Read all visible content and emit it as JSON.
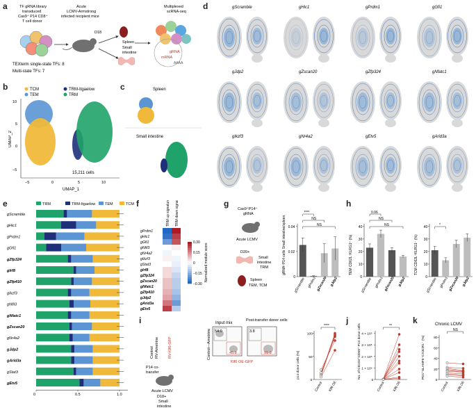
{
  "panel_letters": [
    "a",
    "b",
    "c",
    "d",
    "e",
    "f",
    "g",
    "h",
    "i",
    "j",
    "k"
  ],
  "panel_a": {
    "donor_text": [
      "TF gRNA library",
      "transduced",
      "Cas9⁺ P14 CD8⁺",
      "T cell donor"
    ],
    "infection_text": [
      "Acute",
      "LCMV-Armstrong",
      "infected recipient mice"
    ],
    "seq_text": [
      "Multiplexed",
      "scRNA-seq"
    ],
    "d18": "D18",
    "spleen": "Spleen",
    "small_intestine": [
      "Small",
      "intestine"
    ],
    "grna": "gRNA",
    "mrna": "mRNA",
    "polya": "AAAA",
    "tex_single": "TEXterm single-state TFs: 8",
    "tex_multi": "Multi-state TFs: 7"
  },
  "panel_b": {
    "legend": [
      "TCM",
      "TEM",
      "TRM-Itgaelow",
      "TRM"
    ],
    "cells": "15,211 cells",
    "xlabel": "UMAP_1",
    "ylabel": "UMAP_2",
    "xticks": [
      "−5",
      "0",
      "5",
      "10"
    ],
    "yticks": [
      "−5",
      "0",
      "5",
      "10"
    ]
  },
  "panel_c": {
    "spleen": "Spleen",
    "intestine": "Small intestine"
  },
  "panel_d": {
    "titles": [
      "gScramble",
      "gHic1",
      "gPrdm1",
      "gGfi1",
      "gJdp2",
      "gZscan20",
      "gZfp324",
      "gNfatc1",
      "gIkzf3",
      "gNr4a2",
      "gEtv5",
      "gArid3a"
    ]
  },
  "panel_e": {
    "legend": [
      "TRM",
      "TRM-Itgaelow",
      "TEM",
      "TCM"
    ],
    "xticks": [
      "0",
      "0.5",
      "1.0"
    ],
    "rows": [
      "gScramble",
      "gHic1",
      "gPrdm1",
      "gGfi1",
      "gZfp324",
      "gIrf8",
      "gZfp410",
      "gIkzf3",
      "gNfil3",
      "gNfatc1",
      "gZscan20",
      "gNr4a2",
      "gJdp2",
      "gArid3a",
      "gStat3",
      "gEtv5"
    ],
    "bold": [
      false,
      false,
      false,
      false,
      true,
      true,
      true,
      false,
      false,
      true,
      true,
      false,
      true,
      true,
      false,
      true
    ]
  },
  "panel_f": {
    "col_labels": [
      "TRM up signature",
      "TRM down signature"
    ],
    "rows": [
      "gPrdm1",
      "gHic1",
      "gGfi1",
      "gNfil3",
      "gNr4a2",
      "gIkzf3",
      "gStat3",
      "gIrf8",
      "gZfp324",
      "gZscan20",
      "gNfatc1",
      "gZfp410",
      "gJdp2",
      "gArid3a",
      "gEtv5"
    ],
    "colorbar_label": "Normalized module score",
    "colorbar_ticks": [
      "0.30",
      "0.15",
      "0",
      "−0.15",
      "−0.30"
    ]
  },
  "panel_g": {
    "schema": [
      "Cas9⁺P14⁺",
      "gRNA",
      "Acute LCMV",
      "D20+",
      "Small",
      "intestine",
      "TRM",
      "Spleen",
      "TEM, TCM"
    ],
    "ylabel": "gRNA⁺P14 cells Small intestine/spleen",
    "yticks": [
      "0",
      "0.02",
      "0.04"
    ],
    "categories": [
      "gScramble",
      "gPrdm1",
      "gZscan20",
      "gJdp2"
    ],
    "sig": [
      "****",
      "NS",
      "NS"
    ]
  },
  "panel_h": {
    "left_ylabel": "TEM CD62L⁻KLRG1⁺ (%)",
    "right_ylabel": "TCM CD62L⁺KLRG1⁻ (%)",
    "left_yticks": [
      "0",
      "10",
      "20",
      "30",
      "40"
    ],
    "right_yticks": [
      "0",
      "10",
      "20",
      "30",
      "40"
    ],
    "categories": [
      "gScramble",
      "gPrdm1",
      "gZscan20",
      "gJdp2"
    ],
    "left_sig": [
      "0.06",
      "NS",
      "NS"
    ],
    "right_sig": [
      "*"
    ]
  },
  "panel_i": {
    "schema": [
      "Control",
      "RV-Ametrine",
      "RV-Klf6-GFP",
      "P14 co-",
      "transfer",
      "Acute LCMV",
      "D18+",
      "Small",
      "intestine"
    ],
    "col_titles": [
      "Input mix",
      "Post-transfer donor cells"
    ],
    "ylabel": "Control—Ametrine",
    "xlabel": "Klf6 OE-GFP",
    "gates": [
      "54.0",
      "45.8",
      "3.8",
      "91.9"
    ],
    "plot_ylabel": "p14 donor cells (%)",
    "yticks": [
      "0",
      "50",
      "100"
    ],
    "xticks": [
      "Control",
      "Klf6 OE"
    ],
    "sig": "****"
  },
  "panel_j": {
    "ylabel": "No. of CD103⁺CD69⁺ P14 donor cells",
    "yticks": [
      "0",
      "1 × 10⁵",
      "2 × 10⁵",
      "3 × 10⁵",
      "4 × 10⁵"
    ],
    "xticks": [
      "Control",
      "Klf6 OE"
    ],
    "sig": "**"
  },
  "panel_k": {
    "title": "Chronic LCMV",
    "ylabel": "PD1⁺SLAMF6⁻CX3CR1⁻ (%)",
    "yticks": [
      "0",
      "20",
      "40",
      "60",
      "80"
    ],
    "xticks": [
      "Control",
      "Klf6 OE"
    ],
    "sig": "NS"
  },
  "colors": {
    "tcm": "#f0b93a",
    "tem": "#5b95d4",
    "trm_low": "#1f2f7a",
    "trm": "#20a36a",
    "bar_dark": "#555555",
    "bar_light": "#bdbdbd",
    "red": "#c0392b"
  },
  "chart_data": [
    {
      "type": "bar",
      "title": "",
      "categories": [
        "gScramble",
        "gHic1",
        "gPrdm1",
        "gGfi1",
        "gZfp324",
        "gIrf8",
        "gZfp410",
        "gIkzf3",
        "gNfil3",
        "gNfatc1",
        "gZscan20",
        "gNr4a2",
        "gJdp2",
        "gArid3a",
        "gStat3",
        "gEtv5"
      ],
      "series": [
        {
          "name": "TRM",
          "values": [
            0.33,
            0.3,
            0.1,
            0.12,
            0.38,
            0.45,
            0.42,
            0.38,
            0.4,
            0.38,
            0.4,
            0.4,
            0.42,
            0.42,
            0.45,
            0.52
          ]
        },
        {
          "name": "TRM-Itgaelow",
          "values": [
            0.04,
            0.18,
            0.14,
            0.18,
            0.04,
            0.03,
            0.03,
            0.04,
            0.05,
            0.04,
            0.03,
            0.04,
            0.04,
            0.04,
            0.03,
            0.05
          ]
        },
        {
          "name": "TEM",
          "values": [
            0.3,
            0.24,
            0.34,
            0.3,
            0.26,
            0.22,
            0.22,
            0.22,
            0.2,
            0.22,
            0.24,
            0.2,
            0.22,
            0.22,
            0.2,
            0.2
          ]
        },
        {
          "name": "TCM",
          "values": [
            0.33,
            0.28,
            0.42,
            0.4,
            0.32,
            0.3,
            0.33,
            0.36,
            0.35,
            0.36,
            0.33,
            0.36,
            0.32,
            0.32,
            0.32,
            0.23
          ]
        }
      ],
      "xlim": [
        0,
        1.1
      ]
    },
    {
      "type": "heatmap",
      "rows": [
        "gPrdm1",
        "gHic1",
        "gGfi1",
        "gNfil3",
        "gNr4a2",
        "gIkzf3",
        "gStat3",
        "gIrf8",
        "gZfp324",
        "gZscan20",
        "gNfatc1",
        "gZfp410",
        "gJdp2",
        "gArid3a",
        "gEtv5"
      ],
      "columns": [
        "TRM up signature",
        "TRM down signature"
      ],
      "values": [
        [
          -0.3,
          0.3
        ],
        [
          -0.28,
          0.25
        ],
        [
          -0.2,
          0.22
        ],
        [
          0.0,
          0.02
        ],
        [
          -0.02,
          0.0
        ],
        [
          0.02,
          -0.02
        ],
        [
          0.0,
          -0.03
        ],
        [
          0.05,
          -0.05
        ],
        [
          0.05,
          -0.08
        ],
        [
          0.08,
          -0.1
        ],
        [
          0.08,
          -0.1
        ],
        [
          0.1,
          -0.12
        ],
        [
          0.12,
          -0.15
        ],
        [
          0.18,
          -0.2
        ],
        [
          0.25,
          -0.1
        ]
      ],
      "vmin": -0.3,
      "vmax": 0.3
    },
    {
      "type": "bar",
      "categories": [
        "gScramble",
        "gPrdm1",
        "gZscan20",
        "gJdp2"
      ],
      "values": [
        0.027,
        0.0005,
        0.02,
        0.024
      ],
      "errors": [
        0.006,
        0.0003,
        0.008,
        0.01
      ],
      "ylim": [
        0,
        0.045
      ]
    },
    {
      "type": "bar",
      "categories": [
        "gScramble",
        "gPrdm1",
        "gZscan20",
        "gJdp2"
      ],
      "values": [
        23,
        34,
        21,
        16
      ],
      "errors": [
        3,
        3,
        2,
        1
      ],
      "ylim": [
        0,
        42
      ]
    },
    {
      "type": "bar",
      "categories": [
        "gScramble",
        "gPrdm1",
        "gZscan20",
        "gJdp2"
      ],
      "values": [
        21,
        13,
        26,
        31
      ],
      "errors": [
        3,
        2,
        3,
        3
      ],
      "ylim": [
        0,
        42
      ]
    },
    {
      "type": "line",
      "x": [
        "Control",
        "Klf6 OE"
      ],
      "pairs": [
        [
          10,
          95
        ],
        [
          12,
          92
        ],
        [
          8,
          90
        ],
        [
          14,
          88
        ],
        [
          20,
          80
        ],
        [
          5,
          60
        ]
      ],
      "ylim": [
        0,
        100
      ]
    },
    {
      "type": "line",
      "x": [
        "Control",
        "Klf6 OE"
      ],
      "pairs": [
        [
          2,
          390
        ],
        [
          1,
          300
        ],
        [
          3,
          260
        ],
        [
          1,
          240
        ],
        [
          2,
          200
        ],
        [
          2,
          160
        ],
        [
          1,
          140
        ],
        [
          1,
          90
        ],
        [
          1,
          60
        ],
        [
          2,
          20
        ],
        [
          1,
          10
        ]
      ],
      "ylim": [
        0,
        420
      ]
    },
    {
      "type": "line",
      "x": [
        "Control",
        "Klf6 OE"
      ],
      "pairs": [
        [
          30,
          28
        ],
        [
          22,
          20
        ],
        [
          20,
          16
        ],
        [
          18,
          15
        ],
        [
          16,
          14
        ],
        [
          15,
          13
        ],
        [
          12,
          10
        ],
        [
          10,
          8
        ],
        [
          8,
          7
        ],
        [
          6,
          4
        ]
      ],
      "ylim": [
        0,
        80
      ]
    }
  ]
}
